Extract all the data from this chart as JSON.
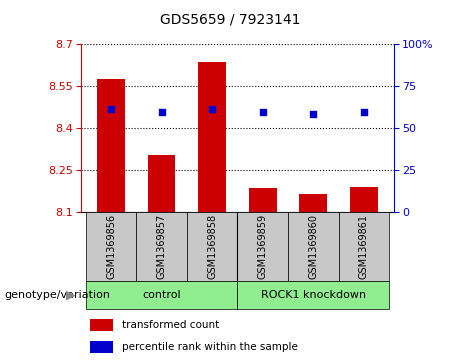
{
  "title": "GDS5659 / 7923141",
  "samples": [
    "GSM1369856",
    "GSM1369857",
    "GSM1369858",
    "GSM1369859",
    "GSM1369860",
    "GSM1369861"
  ],
  "bar_values": [
    8.575,
    8.305,
    8.635,
    8.185,
    8.165,
    8.19
  ],
  "dot_values": [
    8.468,
    8.455,
    8.468,
    8.455,
    8.45,
    8.455
  ],
  "y_min": 8.1,
  "y_max": 8.7,
  "y_ticks": [
    8.1,
    8.25,
    8.4,
    8.55,
    8.7
  ],
  "y2_ticks": [
    0,
    25,
    50,
    75,
    100
  ],
  "bar_color": "#cc0000",
  "dot_color": "#0000cc",
  "bar_width": 0.55,
  "genotype_label": "genotype/variation",
  "legend_bar_label": "transformed count",
  "legend_dot_label": "percentile rank within the sample",
  "bg_color_xlabels": "#c8c8c8",
  "green_color": "#90ee90",
  "title_fontsize": 10,
  "tick_fontsize": 8,
  "sample_fontsize": 7,
  "group_fontsize": 8,
  "legend_fontsize": 7.5,
  "genotype_fontsize": 8
}
